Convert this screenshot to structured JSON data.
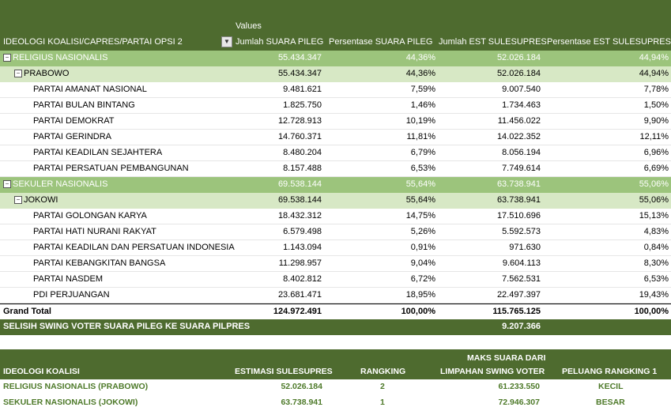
{
  "pivot": {
    "values_label": "Values",
    "row_field": "IDEOLOGI KOALISI/CAPRES/PARTAI OPSI 2",
    "filter_icon": "dropdown-arrow-icon",
    "columns": [
      "Jumlah SUARA PILEG",
      "Persentase SUARA PILEG",
      "Jumlah EST SULESUPRES",
      "Persentase EST SULESUPRES"
    ],
    "groups": [
      {
        "name": "RELIGIUS NASIONALIS",
        "values": [
          "55.434.347",
          "44,36%",
          "52.026.184",
          "44,94%"
        ],
        "sub": {
          "name": "PRABOWO",
          "values": [
            "55.434.347",
            "44,36%",
            "52.026.184",
            "44,94%"
          ],
          "parties": [
            {
              "name": "PARTAI AMANAT NASIONAL",
              "values": [
                "9.481.621",
                "7,59%",
                "9.007.540",
                "7,78%"
              ]
            },
            {
              "name": "PARTAI BULAN BINTANG",
              "values": [
                "1.825.750",
                "1,46%",
                "1.734.463",
                "1,50%"
              ]
            },
            {
              "name": "PARTAI DEMOKRAT",
              "values": [
                "12.728.913",
                "10,19%",
                "11.456.022",
                "9,90%"
              ]
            },
            {
              "name": "PARTAI GERINDRA",
              "values": [
                "14.760.371",
                "11,81%",
                "14.022.352",
                "12,11%"
              ]
            },
            {
              "name": "PARTAI KEADILAN SEJAHTERA",
              "values": [
                "8.480.204",
                "6,79%",
                "8.056.194",
                "6,96%"
              ]
            },
            {
              "name": "PARTAI PERSATUAN PEMBANGUNAN",
              "values": [
                "8.157.488",
                "6,53%",
                "7.749.614",
                "6,69%"
              ]
            }
          ]
        }
      },
      {
        "name": "SEKULER NASIONALIS",
        "values": [
          "69.538.144",
          "55,64%",
          "63.738.941",
          "55,06%"
        ],
        "sub": {
          "name": "JOKOWI",
          "values": [
            "69.538.144",
            "55,64%",
            "63.738.941",
            "55,06%"
          ],
          "parties": [
            {
              "name": "PARTAI GOLONGAN KARYA",
              "values": [
                "18.432.312",
                "14,75%",
                "17.510.696",
                "15,13%"
              ]
            },
            {
              "name": "PARTAI HATI NURANI RAKYAT",
              "values": [
                "6.579.498",
                "5,26%",
                "5.592.573",
                "4,83%"
              ]
            },
            {
              "name": "PARTAI KEADILAN DAN PERSATUAN INDONESIA",
              "values": [
                "1.143.094",
                "0,91%",
                "971.630",
                "0,84%"
              ]
            },
            {
              "name": "PARTAI KEBANGKITAN BANGSA",
              "values": [
                "11.298.957",
                "9,04%",
                "9.604.113",
                "8,30%"
              ]
            },
            {
              "name": "PARTAI NASDEM",
              "values": [
                "8.402.812",
                "6,72%",
                "7.562.531",
                "6,53%"
              ]
            },
            {
              "name": "PDI PERJUANGAN",
              "values": [
                "23.681.471",
                "18,95%",
                "22.497.397",
                "19,43%"
              ]
            }
          ]
        }
      }
    ],
    "grand_total": {
      "label": "Grand Total",
      "values": [
        "124.972.491",
        "100,00%",
        "115.765.125",
        "100,00%"
      ]
    },
    "swing": {
      "label": "SELISIH SWING VOTER SUARA PILEG KE SUARA PILPRES",
      "value": "9.207.366"
    }
  },
  "summary": {
    "headers": [
      "IDEOLOGI KOALISI",
      "ESTIMASI SULESUPRES",
      "RANGKING",
      "MAKS SUARA DARI",
      "LIMPAHAN SWING VOTER",
      "PELUANG RANGKING 1"
    ],
    "rows": [
      {
        "name": "RELIGIUS NASIONALIS (PRABOWO)",
        "est": "52.026.184",
        "rank": "2",
        "max": "61.233.550",
        "chance": "KECIL"
      },
      {
        "name": "SEKULER NASIONALIS (JOKOWI)",
        "est": "63.738.941",
        "rank": "1",
        "max": "72.946.307",
        "chance": "BESAR"
      }
    ]
  }
}
